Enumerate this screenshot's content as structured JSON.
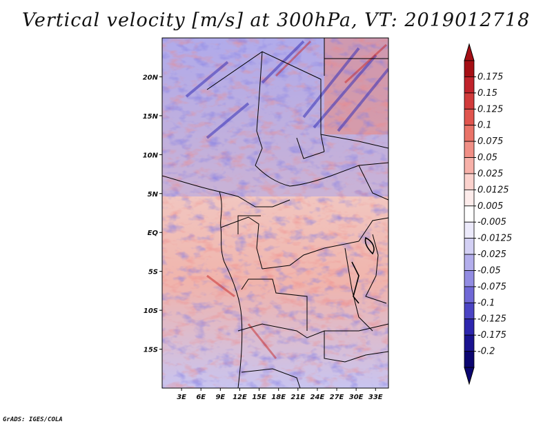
{
  "title": "Vertical velocity [m/s] at 300hPa, VT: 2019012718",
  "credit": "GrADS: IGES/COLA",
  "map": {
    "lon_range": [
      0,
      35
    ],
    "lat_range": [
      -20,
      25
    ],
    "y_axis_labels": [
      "20N",
      "15N",
      "10N",
      "5N",
      "EQ",
      "5S",
      "10S",
      "15S"
    ],
    "y_axis_lats": [
      20,
      15,
      10,
      5,
      0,
      -5,
      -10,
      -15
    ],
    "x_axis_labels": [
      "3E",
      "6E",
      "9E",
      "12E",
      "15E",
      "18E",
      "21E",
      "24E",
      "27E",
      "30E",
      "33E"
    ],
    "x_axis_lons": [
      3,
      6,
      9,
      12,
      15,
      18,
      21,
      24,
      27,
      30,
      33
    ]
  },
  "colorbar": {
    "labels": [
      "0.175",
      "0.15",
      "0.125",
      "0.1",
      "0.075",
      "0.05",
      "0.025",
      "0.0125",
      "0.005",
      "-0.005",
      "-0.0125",
      "-0.025",
      "-0.05",
      "-0.075",
      "-0.1",
      "-0.125",
      "-0.175",
      "-0.2"
    ],
    "colors": [
      "#a50f15",
      "#c0232b",
      "#d13b3b",
      "#e0554e",
      "#e97368",
      "#f08f86",
      "#f7b1a9",
      "#fbd2cd",
      "#fdeceb",
      "#ffffff",
      "#eceafb",
      "#d3d0f4",
      "#b3aeec",
      "#928ce2",
      "#7068d6",
      "#4b44c4",
      "#2d26ae",
      "#1a1390",
      "#0b0570"
    ],
    "tip_top_color": "#a50f15",
    "tip_bottom_color": "#0b0570"
  }
}
